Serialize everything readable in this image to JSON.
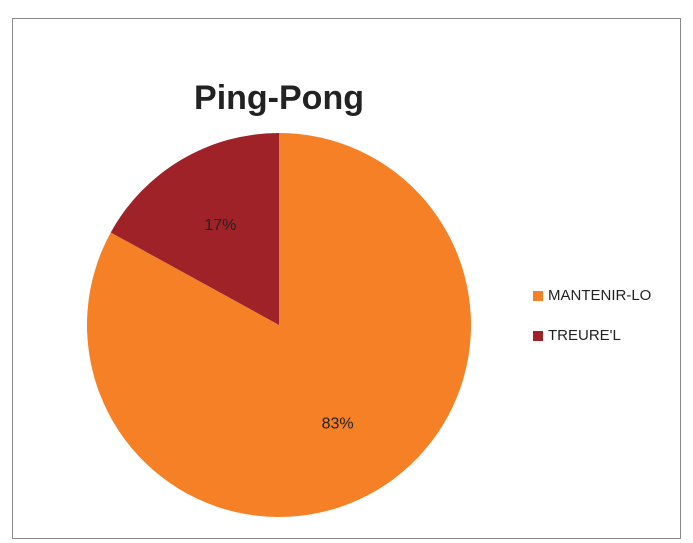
{
  "chart_data": {
    "type": "pie",
    "title": "Ping-Pong",
    "categories": [
      "MANTENIR-LO",
      "TREURE'L"
    ],
    "values": [
      83,
      17
    ],
    "value_labels": [
      "83%",
      "17%"
    ],
    "colors": [
      "#f58025",
      "#9f2229"
    ],
    "legend": "right"
  }
}
